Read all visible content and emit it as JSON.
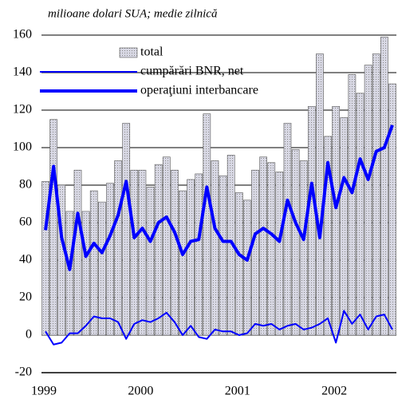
{
  "chart_data": {
    "type": "bar_line",
    "subtitle": "milioane dolari SUA; medie zilnică",
    "categories": [
      "1999",
      null,
      null,
      null,
      null,
      null,
      null,
      null,
      null,
      null,
      null,
      null,
      "2000",
      null,
      null,
      null,
      null,
      null,
      null,
      null,
      null,
      null,
      null,
      null,
      "2001",
      null,
      null,
      null,
      null,
      null,
      null,
      null,
      null,
      null,
      null,
      null,
      "2002",
      null,
      null,
      null,
      null,
      null,
      null,
      null
    ],
    "series": [
      {
        "name": "total",
        "type": "bar",
        "color": "#c9c9d6",
        "values": [
          82,
          115,
          80,
          66,
          88,
          66,
          77,
          71,
          81,
          93,
          113,
          88,
          88,
          79,
          91,
          95,
          88,
          77,
          83,
          86,
          118,
          93,
          85,
          96,
          76,
          72,
          88,
          95,
          92,
          87,
          113,
          99,
          93,
          122,
          150,
          106,
          122,
          116,
          139,
          129,
          144,
          150,
          159,
          134
        ]
      },
      {
        "name": "cumpărări BNR, net",
        "type": "line",
        "color": "#0000ff",
        "values": [
          2,
          -5,
          -4,
          1,
          1,
          5,
          10,
          9,
          9,
          7,
          -2,
          6,
          8,
          7,
          9,
          12,
          7,
          0,
          5,
          -1,
          -2,
          3,
          2,
          2,
          0,
          1,
          6,
          5,
          6,
          3,
          5,
          6,
          3,
          4,
          6,
          9,
          -4,
          13,
          6,
          11,
          3,
          10,
          11,
          3
        ]
      },
      {
        "name": "operaţiuni interbancare",
        "type": "line",
        "color": "#0000ff",
        "values": [
          56,
          90,
          52,
          35,
          65,
          42,
          49,
          44,
          53,
          64,
          82,
          52,
          57,
          50,
          60,
          63,
          55,
          43,
          50,
          51,
          79,
          57,
          50,
          50,
          43,
          40,
          54,
          57,
          54,
          50,
          72,
          60,
          51,
          81,
          52,
          92,
          68,
          84,
          76,
          94,
          83,
          98,
          100,
          112
        ]
      }
    ],
    "ylim": [
      -20,
      160
    ],
    "yticks": [
      -20,
      0,
      20,
      40,
      60,
      80,
      100,
      120,
      140,
      160
    ],
    "grid": true,
    "legend": "top"
  }
}
